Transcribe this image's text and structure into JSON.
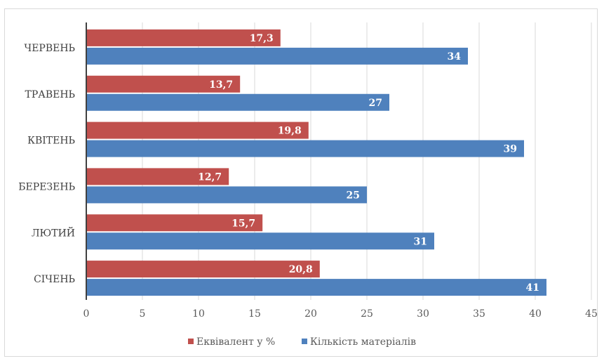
{
  "chart_data": {
    "type": "bar",
    "orientation": "horizontal",
    "categories": [
      "СІЧЕНЬ",
      "ЛЮТИЙ",
      "БЕРЕЗЕНЬ",
      "КВІТЕНЬ",
      "ТРАВЕНЬ",
      "ЧЕРВЕНЬ"
    ],
    "series": [
      {
        "name": "Еквівалент у %",
        "color": "#c0504d",
        "values": [
          20.8,
          15.7,
          12.7,
          19.8,
          13.7,
          17.3
        ],
        "labels": [
          "20,8",
          "15,7",
          "12,7",
          "19,8",
          "13,7",
          "17,3"
        ]
      },
      {
        "name": "Кількість матеріалів",
        "color": "#4f81bd",
        "values": [
          41,
          31,
          25,
          39,
          27,
          34
        ],
        "labels": [
          "41",
          "31",
          "25",
          "39",
          "27",
          "34"
        ]
      }
    ],
    "xlim": [
      0,
      45
    ],
    "xticks": [
      0,
      5,
      10,
      15,
      20,
      25,
      30,
      35,
      40,
      45
    ],
    "grid": true,
    "legend_position": "bottom",
    "title": "",
    "xlabel": "",
    "ylabel": ""
  }
}
